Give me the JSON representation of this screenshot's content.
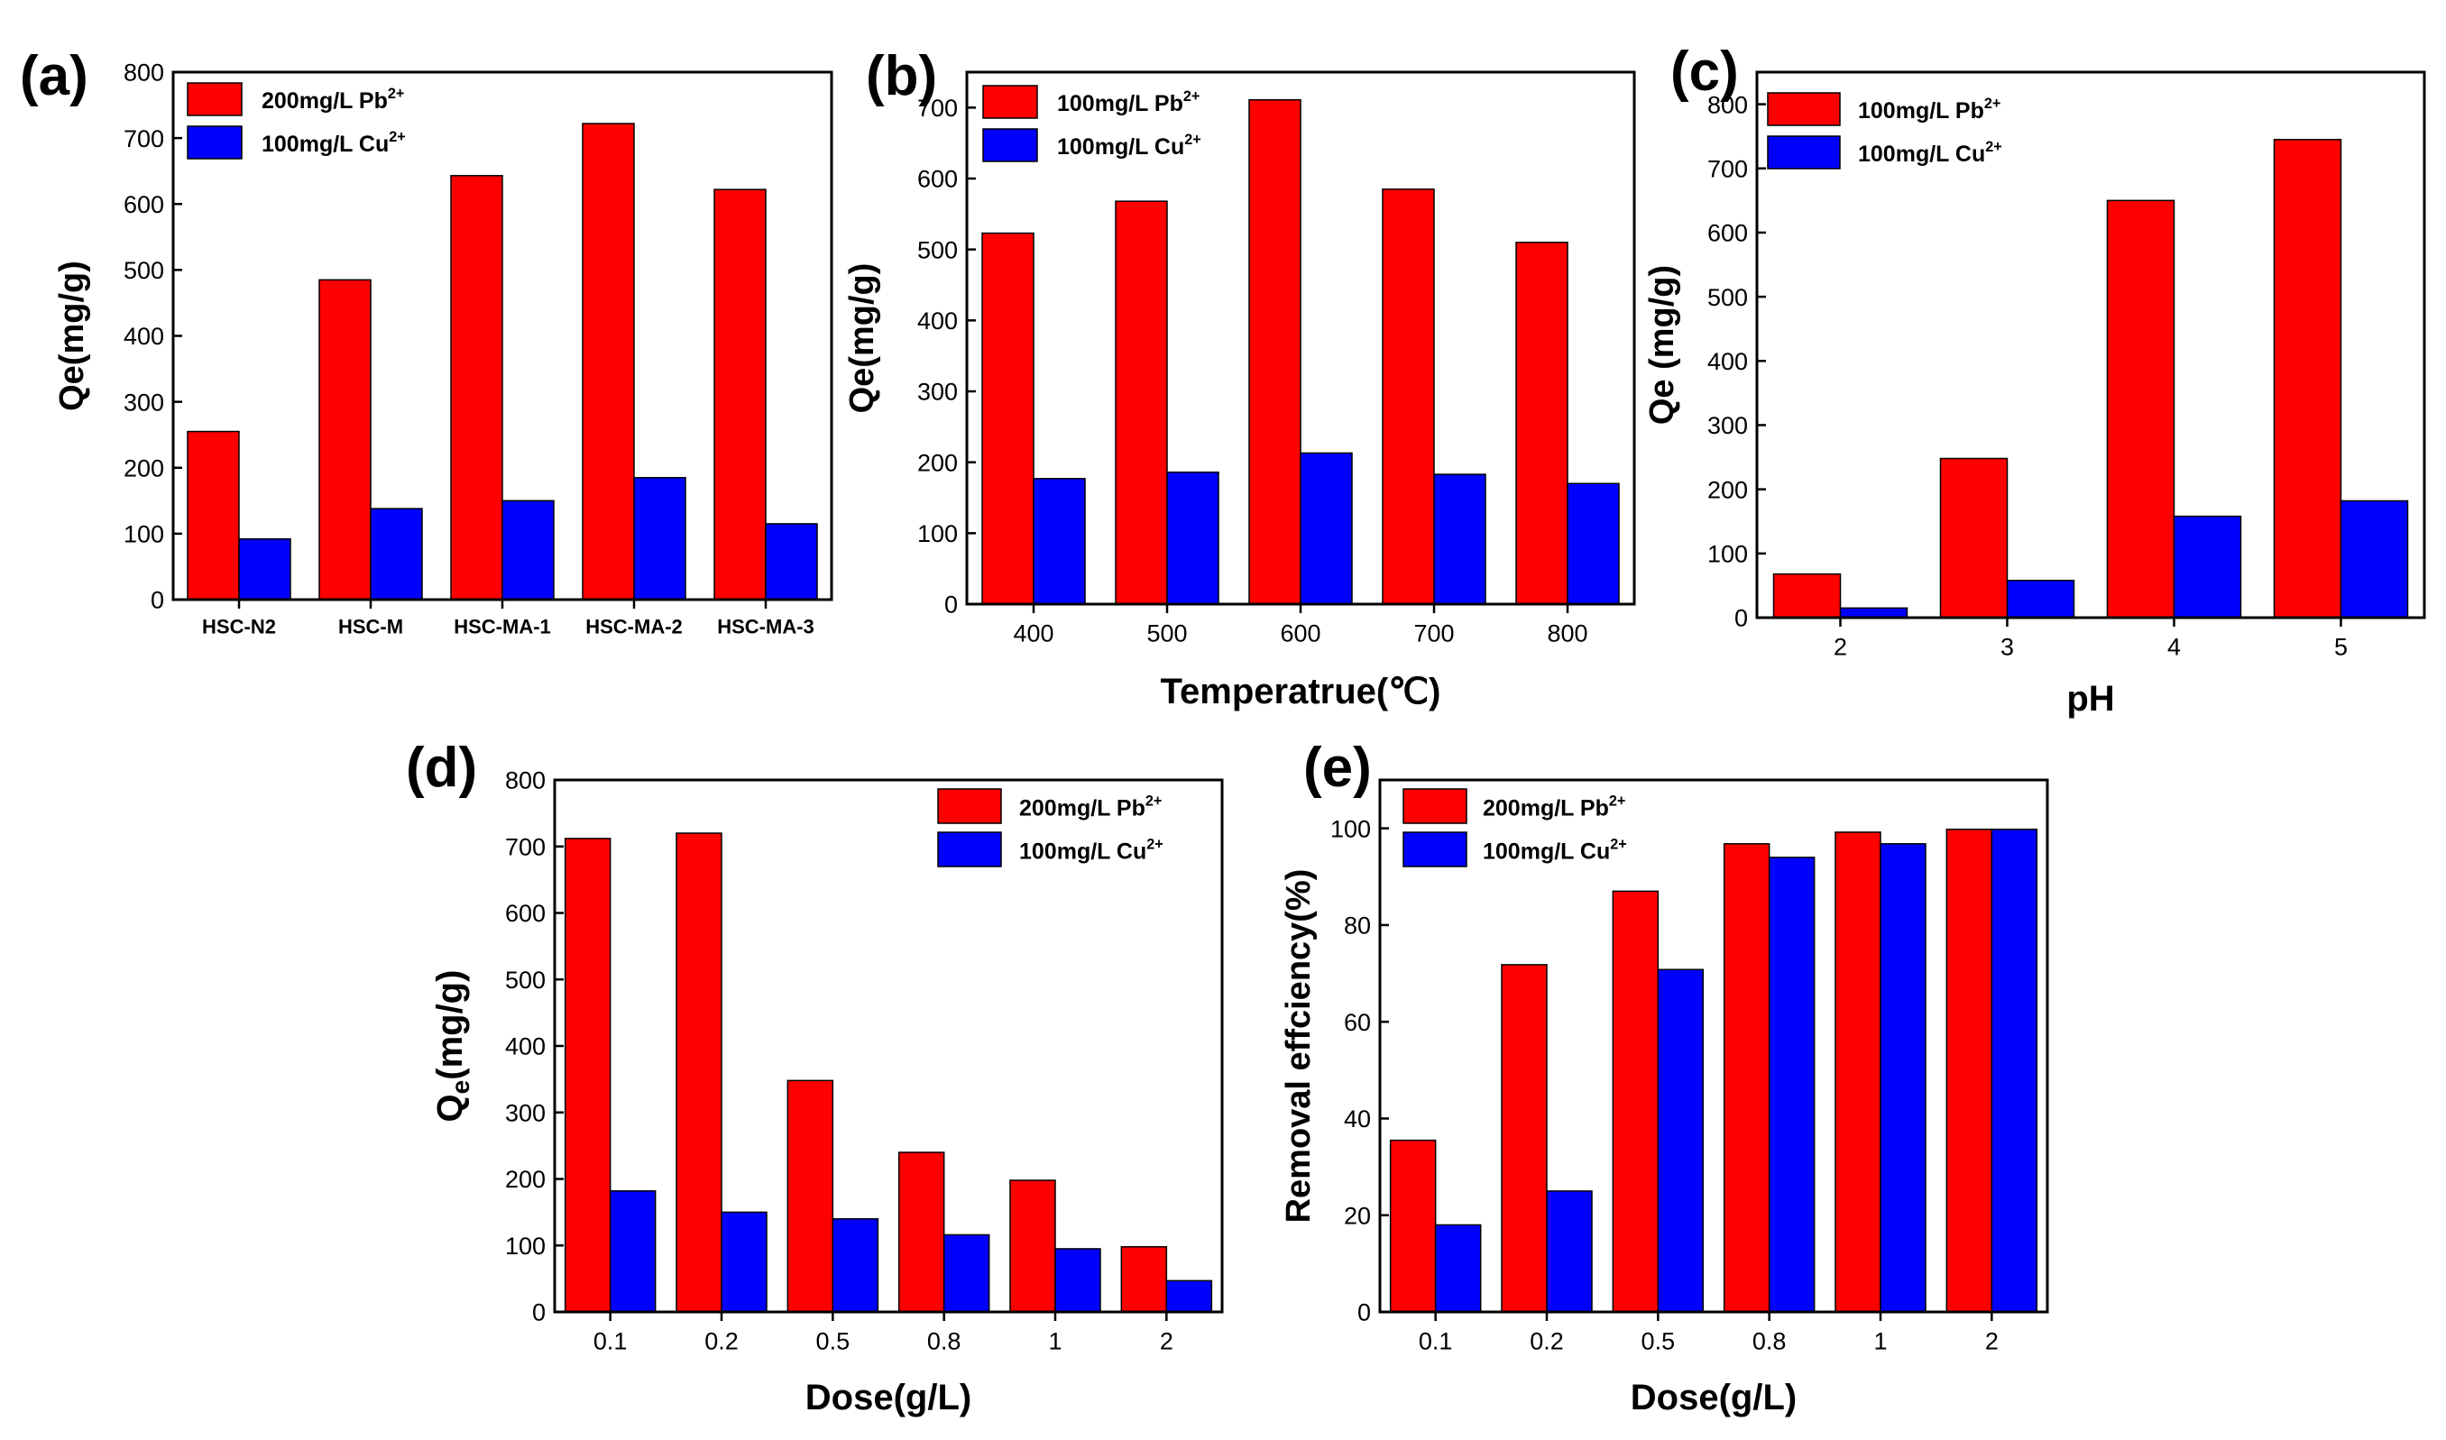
{
  "colors": {
    "pb": "#ff0000",
    "cu": "#0000ff"
  },
  "chart_data": [
    {
      "id": "a",
      "type": "bar",
      "panel_label": "(a)",
      "categories": [
        "HSC-N2",
        "HSC-M",
        "HSC-MA-1",
        "HSC-MA-2",
        "HSC-MA-3"
      ],
      "series": [
        {
          "name": "200mg/L Pb",
          "values": [
            255,
            485,
            643,
            722,
            622
          ]
        },
        {
          "name": "100mg/L Cu",
          "values": [
            92,
            138,
            150,
            185,
            115
          ]
        }
      ],
      "legend": [
        {
          "text": "200mg/L Pb",
          "sup": "2+"
        },
        {
          "text": "100mg/L Cu",
          "sup": "2+"
        }
      ],
      "ylabel": "Qe(mg/g)",
      "xlabel": "",
      "ylim": [
        0,
        800
      ],
      "yticks": [
        0,
        100,
        200,
        300,
        400,
        500,
        600,
        700,
        800
      ],
      "legend_position": "top-left"
    },
    {
      "id": "b",
      "type": "bar",
      "panel_label": "(b)",
      "categories": [
        "400",
        "500",
        "600",
        "700",
        "800"
      ],
      "series": [
        {
          "name": "100mg/L Pb",
          "values": [
            523,
            568,
            711,
            585,
            510
          ]
        },
        {
          "name": "100mg/L Cu",
          "values": [
            177,
            186,
            213,
            183,
            170
          ]
        }
      ],
      "legend": [
        {
          "text": "100mg/L Pb",
          "sup": "2+"
        },
        {
          "text": "100mg/L Cu",
          "sup": "2+"
        }
      ],
      "ylabel": "Qe(mg/g)",
      "xlabel": "Temperatrue(℃)",
      "ylim": [
        0,
        750
      ],
      "yticks": [
        0,
        100,
        200,
        300,
        400,
        500,
        600,
        700
      ],
      "legend_position": "top-left"
    },
    {
      "id": "c",
      "type": "bar",
      "panel_label": "(c)",
      "categories": [
        "2",
        "3",
        "4",
        "5"
      ],
      "series": [
        {
          "name": "100mg/L Pb",
          "values": [
            68,
            248,
            650,
            745
          ]
        },
        {
          "name": "100mg/L Cu",
          "values": [
            15,
            58,
            158,
            182
          ]
        }
      ],
      "legend": [
        {
          "text": "100mg/L Pb",
          "sup": "2+"
        },
        {
          "text": "100mg/L Cu",
          "sup": "2+"
        }
      ],
      "ylabel": "Qe (mg/g)",
      "xlabel": "pH",
      "ylim": [
        0,
        850
      ],
      "yticks": [
        0,
        100,
        200,
        300,
        400,
        500,
        600,
        700,
        800
      ],
      "legend_position": "top-left"
    },
    {
      "id": "d",
      "type": "bar",
      "panel_label": "(d)",
      "categories": [
        "0.1",
        "0.2",
        "0.5",
        "0.8",
        "1",
        "2"
      ],
      "series": [
        {
          "name": "200mg/L Pb",
          "values": [
            712,
            720,
            348,
            240,
            198,
            98
          ]
        },
        {
          "name": "100mg/L Cu",
          "values": [
            182,
            150,
            140,
            116,
            95,
            47
          ]
        }
      ],
      "legend": [
        {
          "text": "200mg/L Pb",
          "sup": "2+"
        },
        {
          "text": "100mg/L Cu",
          "sup": "2+"
        }
      ],
      "ylabel": "Q",
      "ylabel_sub": "e",
      "ylabel_rest": "(mg/g)",
      "xlabel": "Dose(g/L)",
      "ylim": [
        0,
        800
      ],
      "yticks": [
        0,
        100,
        200,
        300,
        400,
        500,
        600,
        700,
        800
      ],
      "legend_position": "top-right"
    },
    {
      "id": "e",
      "type": "bar",
      "panel_label": "(e)",
      "categories": [
        "0.1",
        "0.2",
        "0.5",
        "0.8",
        "1",
        "2"
      ],
      "series": [
        {
          "name": "200mg/L Pb",
          "values": [
            35.5,
            71.8,
            87,
            96.8,
            99.2,
            99.8
          ]
        },
        {
          "name": "100mg/L Cu",
          "values": [
            18,
            25,
            70.8,
            94,
            96.8,
            99.8
          ]
        }
      ],
      "legend": [
        {
          "text": "200mg/L Pb",
          "sup": "2+"
        },
        {
          "text": "100mg/L Cu",
          "sup": "2+"
        }
      ],
      "ylabel": "Removal effciency(%)",
      "xlabel": "Dose(g/L)",
      "ylim": [
        0,
        110
      ],
      "yticks": [
        0,
        20,
        40,
        60,
        80,
        100
      ],
      "legend_position": "top-left"
    }
  ]
}
